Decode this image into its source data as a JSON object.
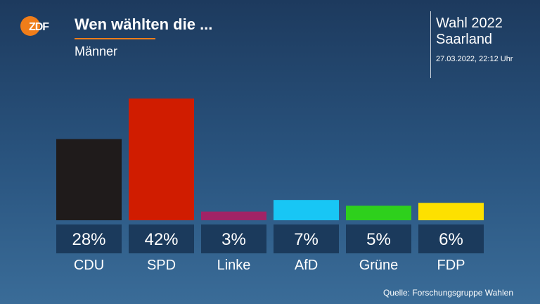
{
  "header": {
    "logo_text": "ZDF",
    "title": "Wen wählten die ...",
    "subtitle": "Männer",
    "election_line1": "Wahl 2022",
    "election_line2": "Saarland",
    "timestamp": "27.03.2022, 22:12 Uhr"
  },
  "colors": {
    "accent": "#f07d19",
    "label_box": "#1b3a5c"
  },
  "chart_data": {
    "type": "bar",
    "title": "Wen wählten die ...",
    "subtitle": "Männer",
    "categories": [
      "CDU",
      "SPD",
      "Linke",
      "AfD",
      "Grüne",
      "FDP"
    ],
    "values": [
      28,
      42,
      3,
      7,
      5,
      6
    ],
    "value_labels": [
      "28%",
      "42%",
      "3%",
      "7%",
      "5%",
      "6%"
    ],
    "colors": [
      "#1f1b1b",
      "#d01c00",
      "#a12366",
      "#18c6f5",
      "#2ed01c",
      "#fde000"
    ],
    "unit": "%",
    "ylim": [
      0,
      42
    ],
    "grid": false,
    "legend": "none"
  },
  "footer": {
    "source": "Quelle: Forschungsgruppe Wahlen"
  }
}
